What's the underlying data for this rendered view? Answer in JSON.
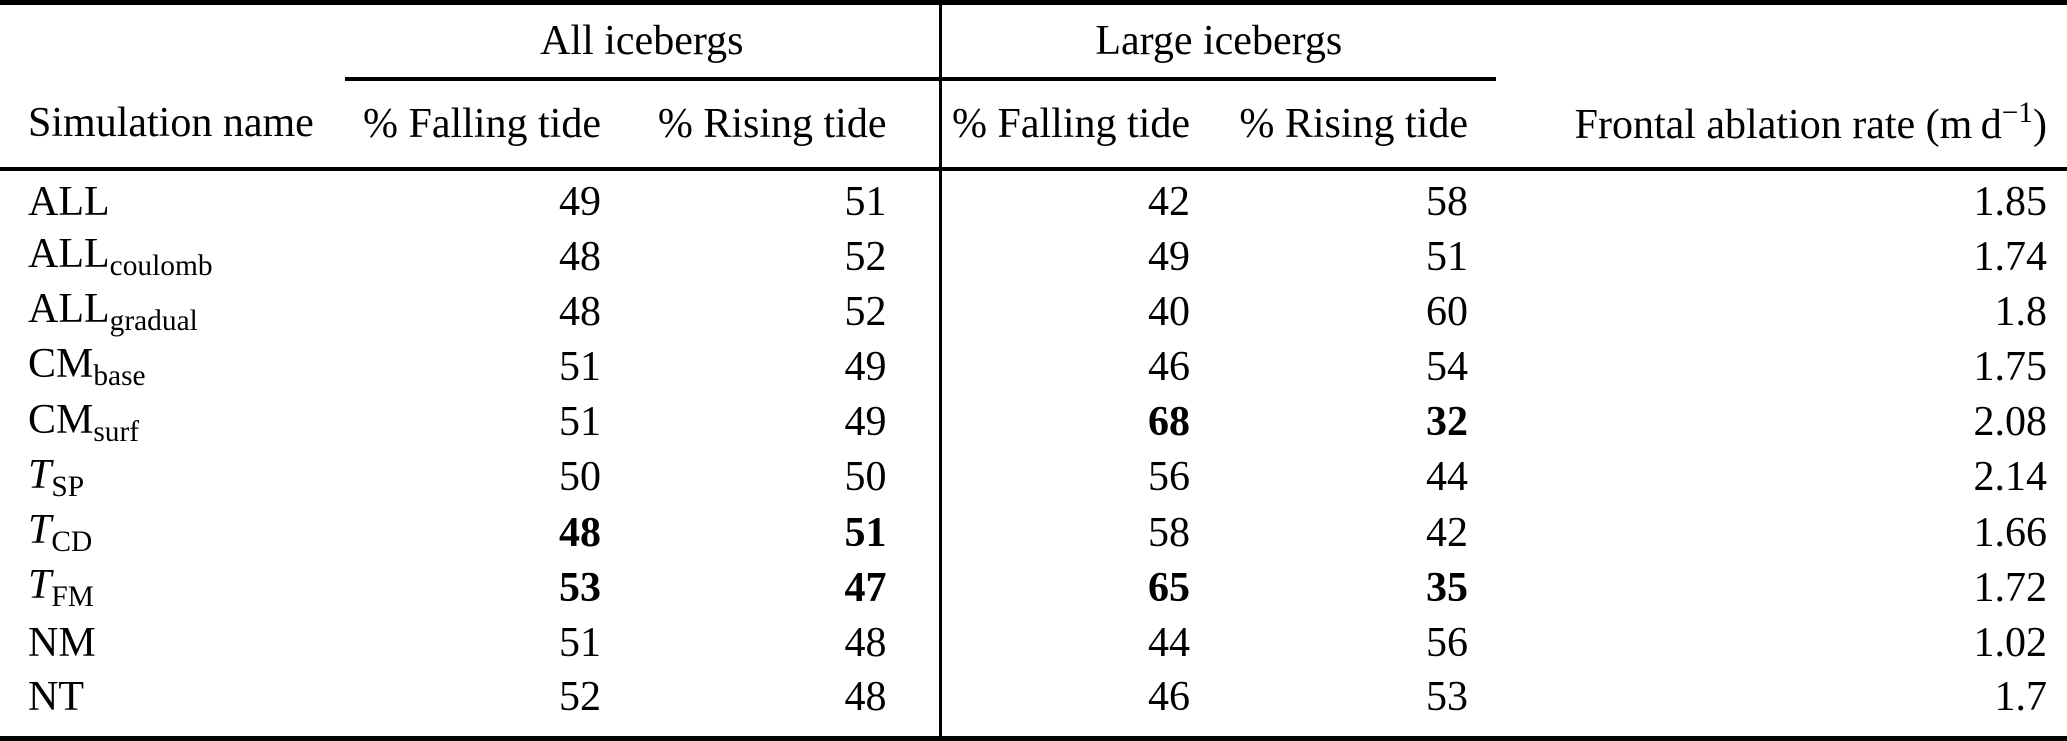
{
  "table": {
    "groups": [
      {
        "label": "All icebergs"
      },
      {
        "label": "Large icebergs"
      }
    ],
    "column_headers": [
      {
        "text": "Simulation name"
      },
      {
        "text": "% Falling tide"
      },
      {
        "text": "% Rising tide"
      },
      {
        "text": "% Falling tide"
      },
      {
        "text": "% Rising tide"
      },
      {
        "text": "Frontal ablation rate (m d",
        "sup": "−1",
        "suffix": ")"
      }
    ],
    "value_cell_names": [
      "all-falling-tide-cell",
      "all-rising-tide-cell",
      "large-falling-tide-cell",
      "large-rising-tide-cell",
      "frontal-ablation-rate-cell"
    ],
    "rows": [
      {
        "name": {
          "base": "ALL",
          "sub": "",
          "italic": false
        },
        "values": [
          "49",
          "51",
          "42",
          "58",
          "1.85"
        ],
        "bold": [
          false,
          false,
          false,
          false,
          false
        ]
      },
      {
        "name": {
          "base": "ALL",
          "sub": "coulomb",
          "italic": false
        },
        "values": [
          "48",
          "52",
          "49",
          "51",
          "1.74"
        ],
        "bold": [
          false,
          false,
          false,
          false,
          false
        ]
      },
      {
        "name": {
          "base": "ALL",
          "sub": "gradual",
          "italic": false
        },
        "values": [
          "48",
          "52",
          "40",
          "60",
          "1.8"
        ],
        "bold": [
          false,
          false,
          false,
          false,
          false
        ]
      },
      {
        "name": {
          "base": "CM",
          "sub": "base",
          "italic": false
        },
        "values": [
          "51",
          "49",
          "46",
          "54",
          "1.75"
        ],
        "bold": [
          false,
          false,
          false,
          false,
          false
        ]
      },
      {
        "name": {
          "base": "CM",
          "sub": "surf",
          "italic": false
        },
        "values": [
          "51",
          "49",
          "68",
          "32",
          "2.08"
        ],
        "bold": [
          false,
          false,
          true,
          true,
          false
        ]
      },
      {
        "name": {
          "base": "T",
          "sub": "SP",
          "italic": true
        },
        "values": [
          "50",
          "50",
          "56",
          "44",
          "2.14"
        ],
        "bold": [
          false,
          false,
          false,
          false,
          false
        ]
      },
      {
        "name": {
          "base": "T",
          "sub": "CD",
          "italic": true
        },
        "values": [
          "48",
          "51",
          "58",
          "42",
          "1.66"
        ],
        "bold": [
          true,
          true,
          false,
          false,
          false
        ]
      },
      {
        "name": {
          "base": "T",
          "sub": "FM",
          "italic": true
        },
        "values": [
          "53",
          "47",
          "65",
          "35",
          "1.72"
        ],
        "bold": [
          true,
          true,
          true,
          true,
          false
        ]
      },
      {
        "name": {
          "base": "NM",
          "sub": "",
          "italic": false
        },
        "values": [
          "51",
          "48",
          "44",
          "56",
          "1.02"
        ],
        "bold": [
          false,
          false,
          false,
          false,
          false
        ]
      },
      {
        "name": {
          "base": "NT",
          "sub": "",
          "italic": false
        },
        "values": [
          "52",
          "48",
          "46",
          "53",
          "1.7"
        ],
        "bold": [
          false,
          false,
          false,
          false,
          false
        ]
      }
    ]
  }
}
